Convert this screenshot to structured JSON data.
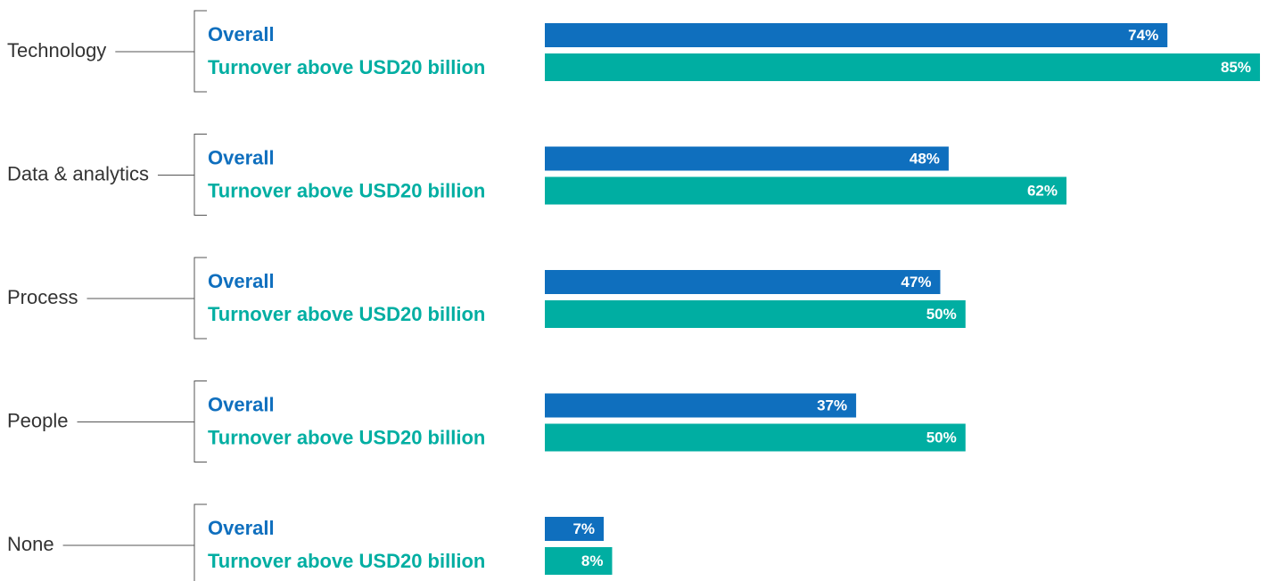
{
  "chart_data": {
    "type": "bar",
    "orientation": "horizontal",
    "categories": [
      "Technology",
      "Data & analytics",
      "Process",
      "People",
      "None"
    ],
    "series": [
      {
        "name": "Overall",
        "color": "#0f6fbe",
        "values": [
          74,
          48,
          47,
          37,
          7
        ],
        "value_labels": [
          "74%",
          "48%",
          "47%",
          "37%",
          "7%"
        ]
      },
      {
        "name": "Turnover above USD20 billion",
        "color": "#00aea2",
        "values": [
          85,
          62,
          50,
          50,
          8
        ],
        "value_labels": [
          "85%",
          "62%",
          "50%",
          "50%",
          "8%"
        ]
      }
    ]
  }
}
